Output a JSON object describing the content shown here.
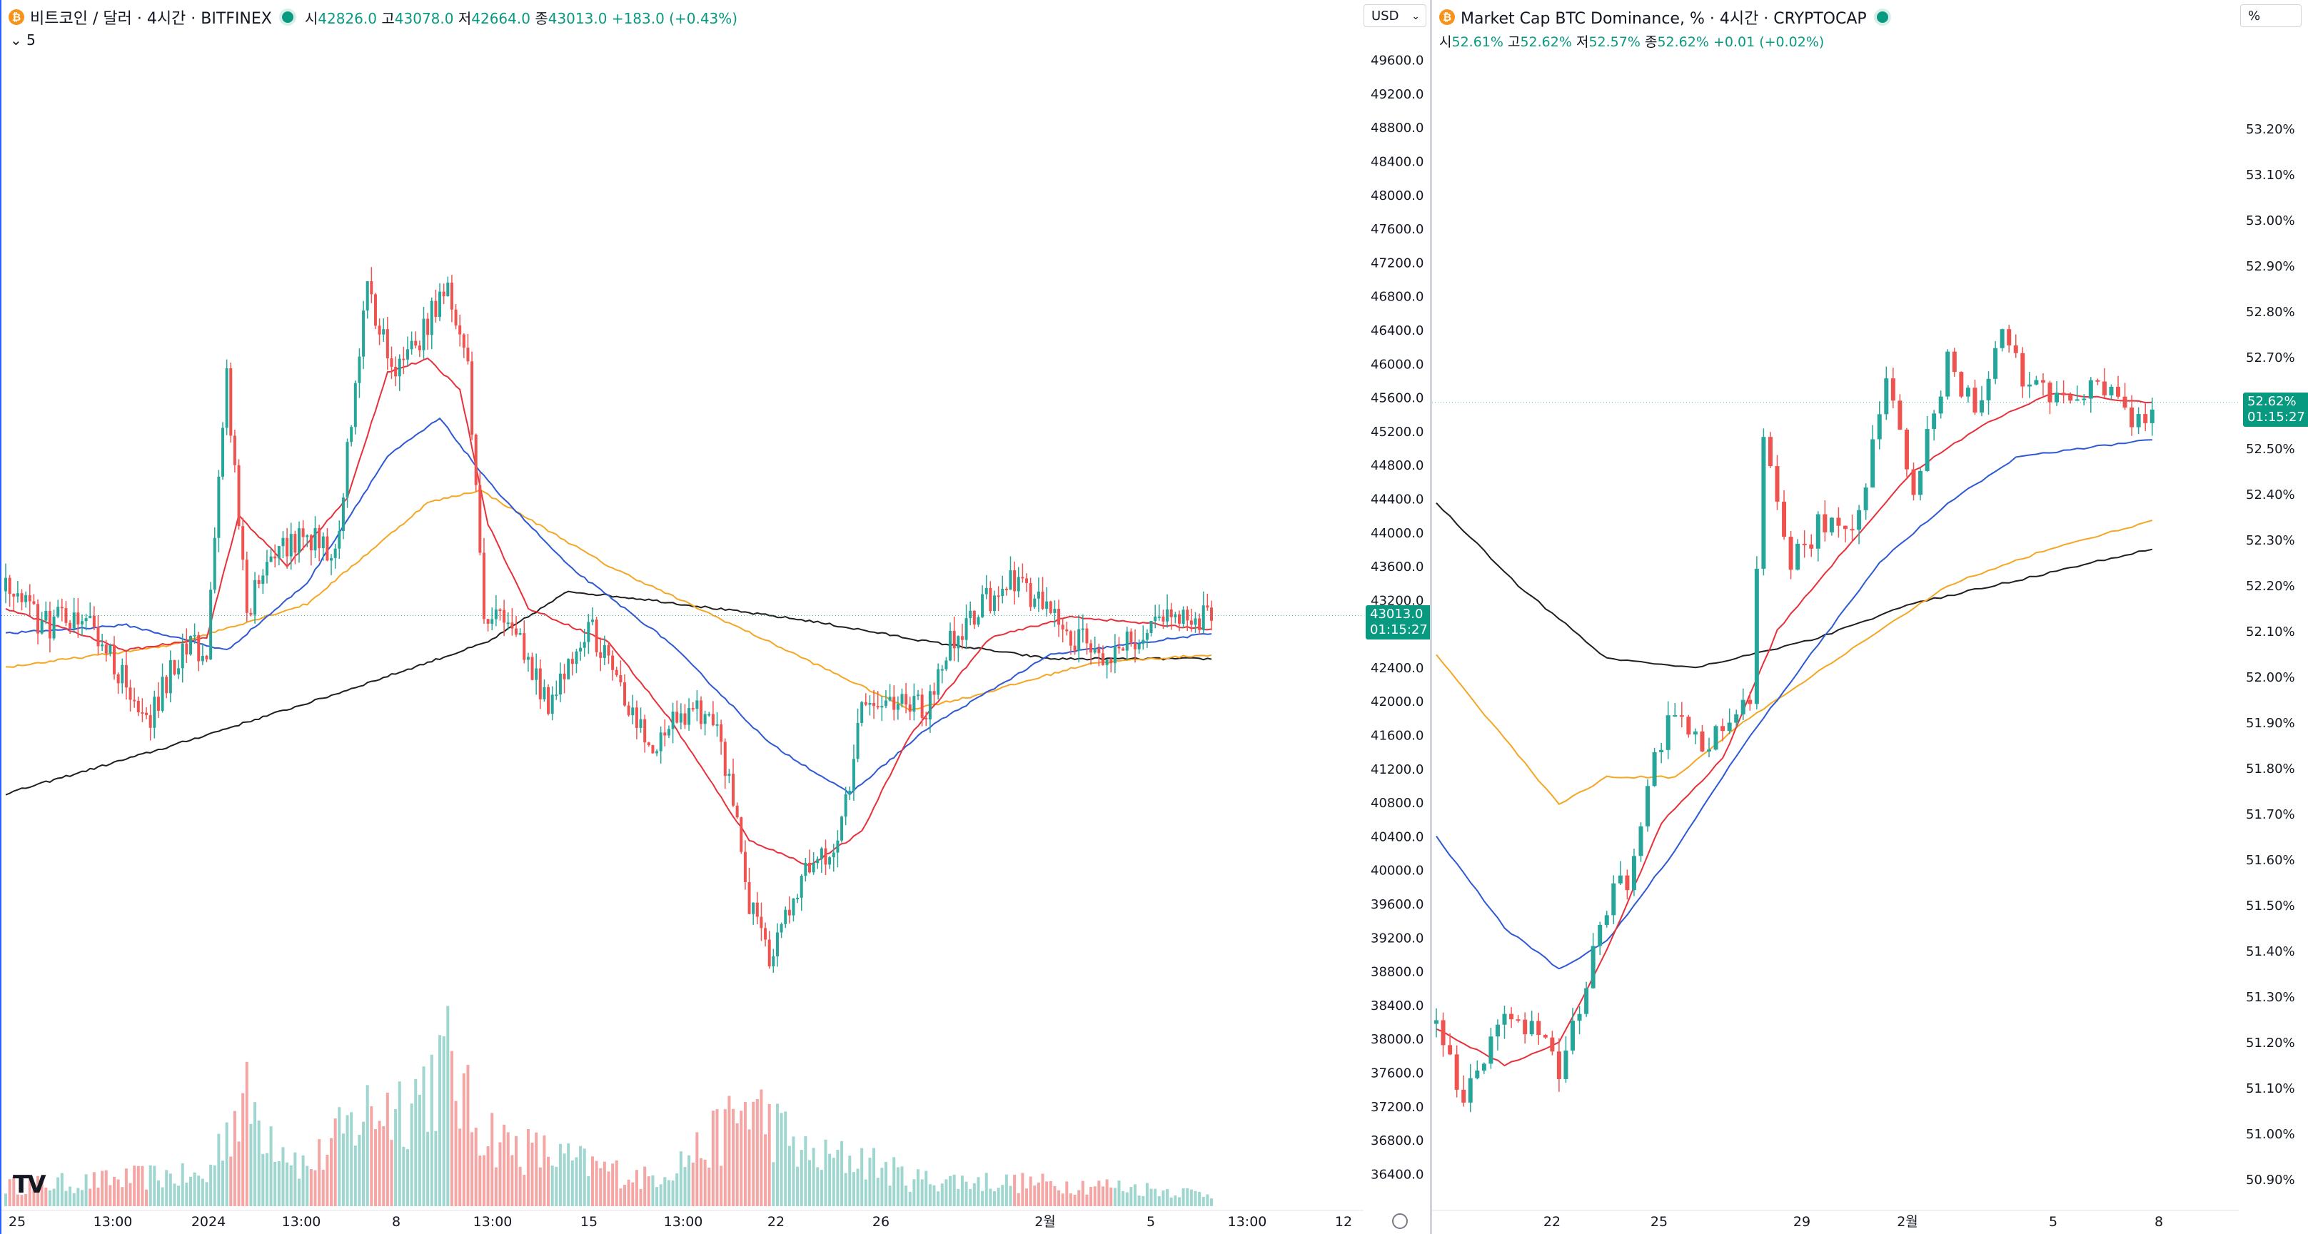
{
  "left_chart": {
    "header": {
      "symbol_title": "비트코인 / 달러 · 4시간 · BITFINEX",
      "open_label": "시",
      "open": "42826.0",
      "high_label": "고",
      "high": "43078.0",
      "low_label": "저",
      "low": "42664.0",
      "close_label": "종",
      "close": "43013.0",
      "change": "+183.0 (+0.43%)",
      "indicator_toggle": "5"
    },
    "currency": "USD",
    "price_label": "43013.0",
    "countdown": "01:15:27",
    "logo_text": "TV"
  },
  "right_chart": {
    "header": {
      "symbol_title": "Market Cap BTC Dominance, % · 4시간 · CRYPTOCAP",
      "open_label": "시",
      "open": "52.61%",
      "high_label": "고",
      "high": "52.62%",
      "low_label": "저",
      "low": "52.57%",
      "close_label": "종",
      "close": "52.62%",
      "change": "+0.01 (+0.02%)"
    },
    "unit": "%",
    "price_label": "52.62%",
    "countdown": "01:15:27"
  },
  "colors": {
    "up": "#26a69a",
    "down": "#ef5350",
    "vol_up": "#9fd6cf",
    "vol_down": "#f5a6a4",
    "ma_short": "#e8303a",
    "ma_mid": "#2e58d4",
    "ma_long": "#f5a623",
    "ma_200": "#1f1f1f",
    "accent": "#089981"
  },
  "chart_data": [
    {
      "type": "candlestick",
      "title": "비트코인 / 달러",
      "xlabel": "",
      "ylabel": "",
      "ylim": [
        36200,
        49800
      ],
      "y_ticks": [
        "49600.0",
        "49200.0",
        "48800.0",
        "48400.0",
        "48000.0",
        "47600.0",
        "47200.0",
        "46800.0",
        "46400.0",
        "46000.0",
        "45600.0",
        "45200.0",
        "44800.0",
        "44400.0",
        "44000.0",
        "43600.0",
        "43200.0",
        "42800.0",
        "42400.0",
        "42000.0",
        "41600.0",
        "41200.0",
        "40800.0",
        "40400.0",
        "40000.0",
        "39600.0",
        "39200.0",
        "38800.0",
        "38400.0",
        "38000.0",
        "37600.0",
        "37200.0",
        "36800.0",
        "36400.0"
      ],
      "x_ticks": [
        "25",
        "13:00",
        "2024",
        "13:00",
        "8",
        "13:00",
        "15",
        "13:00",
        "22",
        "26",
        "2월",
        "5",
        "13:00",
        "12"
      ],
      "anchors": [
        [
          0,
          43300
        ],
        [
          10,
          42900
        ],
        [
          20,
          43050
        ],
        [
          35,
          41750
        ],
        [
          44,
          42600
        ],
        [
          50,
          42650
        ],
        [
          55,
          45800
        ],
        [
          60,
          43100
        ],
        [
          65,
          43600
        ],
        [
          75,
          44000
        ],
        [
          82,
          43700
        ],
        [
          90,
          46900
        ],
        [
          96,
          45900
        ],
        [
          100,
          46000
        ],
        [
          110,
          47000
        ],
        [
          115,
          45950
        ],
        [
          119,
          43100
        ],
        [
          125,
          43000
        ],
        [
          135,
          41900
        ],
        [
          145,
          42950
        ],
        [
          160,
          41400
        ],
        [
          170,
          41900
        ],
        [
          177,
          41850
        ],
        [
          185,
          39600
        ],
        [
          190,
          38900
        ],
        [
          200,
          40100
        ],
        [
          207,
          40300
        ],
        [
          213,
          41900
        ],
        [
          230,
          41950
        ],
        [
          235,
          42700
        ],
        [
          250,
          43500
        ],
        [
          265,
          42800
        ],
        [
          275,
          42500
        ],
        [
          285,
          42900
        ],
        [
          300,
          43013
        ]
      ],
      "volume_anchors": [
        [
          0,
          30
        ],
        [
          20,
          35
        ],
        [
          40,
          45
        ],
        [
          50,
          40
        ],
        [
          55,
          120
        ],
        [
          60,
          150
        ],
        [
          75,
          55
        ],
        [
          90,
          140
        ],
        [
          100,
          155
        ],
        [
          110,
          210
        ],
        [
          116,
          130
        ],
        [
          125,
          90
        ],
        [
          145,
          60
        ],
        [
          160,
          40
        ],
        [
          175,
          90
        ],
        [
          185,
          150
        ],
        [
          200,
          70
        ],
        [
          213,
          70
        ],
        [
          225,
          40
        ],
        [
          250,
          35
        ],
        [
          275,
          30
        ],
        [
          300,
          18
        ]
      ],
      "ma_short_anchors": [
        [
          0,
          43100
        ],
        [
          30,
          42600
        ],
        [
          50,
          42750
        ],
        [
          58,
          44200
        ],
        [
          70,
          43600
        ],
        [
          85,
          44400
        ],
        [
          95,
          45900
        ],
        [
          105,
          46050
        ],
        [
          113,
          45700
        ],
        [
          120,
          44100
        ],
        [
          130,
          43100
        ],
        [
          150,
          42700
        ],
        [
          165,
          41800
        ],
        [
          185,
          40350
        ],
        [
          200,
          40050
        ],
        [
          213,
          40450
        ],
        [
          225,
          41600
        ],
        [
          245,
          42750
        ],
        [
          265,
          43000
        ],
        [
          300,
          42850
        ]
      ],
      "ma_mid_anchors": [
        [
          0,
          42800
        ],
        [
          30,
          42900
        ],
        [
          55,
          42600
        ],
        [
          75,
          43400
        ],
        [
          95,
          44900
        ],
        [
          108,
          45350
        ],
        [
          120,
          44600
        ],
        [
          140,
          43600
        ],
        [
          165,
          42700
        ],
        [
          190,
          41500
        ],
        [
          210,
          40900
        ],
        [
          230,
          41700
        ],
        [
          260,
          42550
        ],
        [
          300,
          42800
        ]
      ],
      "ma_long_anchors": [
        [
          0,
          42400
        ],
        [
          40,
          42650
        ],
        [
          75,
          43150
        ],
        [
          105,
          44350
        ],
        [
          118,
          44500
        ],
        [
          150,
          43600
        ],
        [
          190,
          42700
        ],
        [
          225,
          41900
        ],
        [
          240,
          42050
        ],
        [
          270,
          42450
        ],
        [
          300,
          42550
        ]
      ],
      "ma_200_anchors": [
        [
          0,
          40900
        ],
        [
          40,
          41450
        ],
        [
          80,
          42050
        ],
        [
          120,
          42700
        ],
        [
          140,
          43300
        ],
        [
          160,
          43200
        ],
        [
          200,
          42950
        ],
        [
          230,
          42700
        ],
        [
          260,
          42500
        ],
        [
          300,
          42500
        ]
      ]
    },
    {
      "type": "candlestick",
      "title": "Market Cap BTC Dominance, %",
      "xlabel": "",
      "ylabel": "",
      "ylim": [
        50.88,
        53.32
      ],
      "y_ticks": [
        "53.20%",
        "53.10%",
        "53.00%",
        "52.90%",
        "52.80%",
        "52.70%",
        "52.60%",
        "52.50%",
        "52.40%",
        "52.30%",
        "52.20%",
        "52.10%",
        "52.00%",
        "51.90%",
        "51.80%",
        "51.70%",
        "51.60%",
        "51.50%",
        "51.40%",
        "51.30%",
        "51.20%",
        "51.10%",
        "51.00%",
        "50.90%"
      ],
      "x_ticks": [
        "22",
        "25",
        "29",
        "2월",
        "5",
        "8"
      ],
      "anchors": [
        [
          0,
          51.24
        ],
        [
          4,
          51.05
        ],
        [
          8,
          51.22
        ],
        [
          14,
          51.25
        ],
        [
          18,
          51.14
        ],
        [
          22,
          51.32
        ],
        [
          25,
          51.5
        ],
        [
          28,
          51.55
        ],
        [
          30,
          51.7
        ],
        [
          34,
          51.92
        ],
        [
          40,
          51.85
        ],
        [
          46,
          51.95
        ],
        [
          48,
          52.5
        ],
        [
          52,
          52.26
        ],
        [
          58,
          52.36
        ],
        [
          62,
          52.35
        ],
        [
          66,
          52.63
        ],
        [
          70,
          52.4
        ],
        [
          75,
          52.68
        ],
        [
          80,
          52.58
        ],
        [
          83,
          52.78
        ],
        [
          87,
          52.62
        ],
        [
          92,
          52.61
        ],
        [
          97,
          52.64
        ],
        [
          102,
          52.56
        ],
        [
          105,
          52.6
        ]
      ],
      "ma_short_anchors": [
        [
          0,
          51.23
        ],
        [
          10,
          51.15
        ],
        [
          18,
          51.2
        ],
        [
          25,
          51.4
        ],
        [
          33,
          51.68
        ],
        [
          42,
          51.82
        ],
        [
          50,
          52.1
        ],
        [
          60,
          52.28
        ],
        [
          70,
          52.45
        ],
        [
          80,
          52.55
        ],
        [
          90,
          52.62
        ],
        [
          105,
          52.6
        ]
      ],
      "ma_mid_anchors": [
        [
          0,
          51.65
        ],
        [
          10,
          51.45
        ],
        [
          18,
          51.36
        ],
        [
          25,
          51.42
        ],
        [
          35,
          51.62
        ],
        [
          45,
          51.85
        ],
        [
          55,
          52.05
        ],
        [
          65,
          52.25
        ],
        [
          75,
          52.38
        ],
        [
          85,
          52.48
        ],
        [
          95,
          52.5
        ],
        [
          105,
          52.52
        ]
      ],
      "ma_long_anchors": [
        [
          0,
          52.05
        ],
        [
          8,
          51.9
        ],
        [
          18,
          51.72
        ],
        [
          25,
          51.78
        ],
        [
          35,
          51.78
        ],
        [
          45,
          51.9
        ],
        [
          60,
          52.05
        ],
        [
          75,
          52.2
        ],
        [
          90,
          52.28
        ],
        [
          105,
          52.34
        ]
      ],
      "ma_200_anchors": [
        [
          0,
          52.38
        ],
        [
          12,
          52.2
        ],
        [
          25,
          52.04
        ],
        [
          38,
          52.02
        ],
        [
          55,
          52.08
        ],
        [
          70,
          52.16
        ],
        [
          85,
          52.21
        ],
        [
          105,
          52.28
        ]
      ]
    }
  ]
}
